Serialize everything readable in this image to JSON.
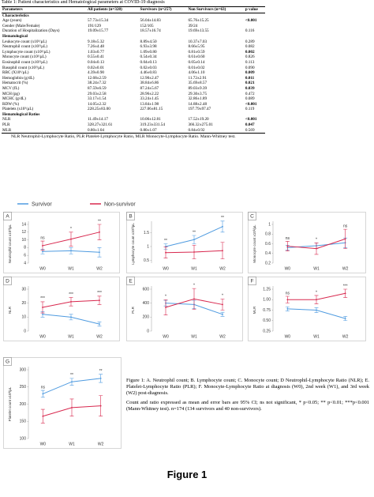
{
  "table": {
    "caption": "Table 1: Patient characteristics and Hematological parameters at COVID-19 diagnosis",
    "header": [
      "Parameters",
      "All patients (n=320)",
      "Survivors (n=257)",
      "Non Survivors (n=63)",
      "p value"
    ],
    "rows": [
      {
        "cells": [
          "Characteristics"
        ],
        "section": true
      },
      {
        "cells": [
          "Age (years)",
          "57.73±15.34",
          "56.04±14.83",
          "65.76±15.25",
          "<0.001"
        ],
        "bold": true
      },
      {
        "cells": [
          "Gender (Male/Female)",
          "191/129",
          "152/105",
          "39/24"
        ]
      },
      {
        "cells": [
          "Duration of Hospitalization (Days)",
          "19.09±15.77",
          "18.57±16.74",
          "19.69±13.55",
          "0.116"
        ]
      },
      {
        "cells": [
          "Hematological"
        ],
        "section": true
      },
      {
        "cells": [
          "Leukocyte count (x10³/µL)",
          "9.18±5.32",
          "8.89±4.50",
          "10.37±7.03",
          "0.289"
        ]
      },
      {
        "cells": [
          "Neutrophil count (x10³/µL)",
          "7.26±4.48",
          "6.93±3.98",
          "8.66±5.95",
          "0.082"
        ]
      },
      {
        "cells": [
          "Lymphocyte count (x10³/µL)",
          "1.03±0.77",
          "1.09±0.80",
          "0.81±0.59",
          "0.002"
        ],
        "bold": true
      },
      {
        "cells": [
          "Monocyte count (x10³/µL)",
          "0.55±0.41",
          "0.54±0.34",
          "0.61±0.60",
          "0.826"
        ]
      },
      {
        "cells": [
          "Eosinophil count (x10³/µL)",
          "0.04±0.13",
          "0.04±0.13",
          "0.05±0.14",
          "0.113"
        ]
      },
      {
        "cells": [
          "Basophil count (x10³/µL)",
          "0.02±0.01",
          "0.02±0.03",
          "0.01±0.02",
          "0.090"
        ]
      },
      {
        "cells": [
          "RBC (X10⁶/µL)",
          "4.39±0.90",
          "4.46±0.83",
          "4.06±1.10",
          "0.009"
        ],
        "bold": true
      },
      {
        "cells": [
          "Hemoglobin (g/dL)",
          "12.68±2.59",
          "12.90±2.47",
          "11.72±2.91",
          "0.011"
        ],
        "bold": true
      },
      {
        "cells": [
          "Hematocrit (%)",
          "38.24±7.32",
          "38.84±6.86",
          "35.69±8.57",
          "0.021"
        ],
        "bold": true
      },
      {
        "cells": [
          "MCV (fL)",
          "87.59±6.59",
          "87.24±5.67",
          "89.03±9.39",
          "0.039"
        ],
        "bold": true
      },
      {
        "cells": [
          "MCH (pg)",
          "29.03±2.58",
          "28.96±2.22",
          "29.30±3.75",
          "0.472"
        ]
      },
      {
        "cells": [
          "MCHC (g/dL)",
          "33.17±1.54",
          "33.24±1.45",
          "32.86±1.89",
          "0.089"
        ]
      },
      {
        "cells": [
          "RDW (%)",
          "14.05±2.32",
          "13.84±1.98",
          "14.88±2.48",
          "<0.001"
        ],
        "bold": true
      },
      {
        "cells": [
          "Platelets (x10³/µL)",
          "228.25±83.00",
          "227.06±81.15",
          "197.79±97.47",
          "0.119"
        ]
      },
      {
        "cells": [
          "Hematological Ratios"
        ],
        "section": true
      },
      {
        "cells": [
          "NLR",
          "11.49±14.17",
          "10.06±12.81",
          "17.52±19.20",
          "<0.001"
        ],
        "bold": true
      },
      {
        "cells": [
          "PLR",
          "328.27±321.61",
          "319.23±331.54",
          "366.32±275.01",
          "0.047"
        ],
        "bold": true
      },
      {
        "cells": [
          "MLR",
          "0.80±1.04",
          "0.80±1.07",
          "0.84±0.92",
          "0.569"
        ]
      }
    ],
    "footnote": "NLR Neutrophil-Lymphocyte Ratio, PLR Platelet-Lymphocyte Ratio, MLR Monocyte-Lymphocyte Ratio. Mann-Whitney test."
  },
  "legend": [
    {
      "name": "Survivor",
      "color": "#4f9be0"
    },
    {
      "name": "Non-survivor",
      "color": "#d8284e"
    }
  ],
  "chart_data": [
    {
      "type": "line",
      "label": "A",
      "ylabel": "Neutrophil count x10³/µL",
      "categories": [
        "W0",
        "W1",
        "W2"
      ],
      "ylim": [
        4,
        14
      ],
      "yticks": [
        4,
        6,
        8,
        10,
        12,
        14
      ],
      "significance": [
        "ns",
        "*",
        "**"
      ],
      "series": [
        {
          "values": [
            7,
            7.2,
            6.8
          ],
          "errors": [
            0.6,
            0.8,
            1.2
          ]
        },
        {
          "values": [
            8.5,
            10.2,
            12
          ],
          "errors": [
            1.2,
            1.8,
            2
          ]
        }
      ]
    },
    {
      "type": "line",
      "label": "B",
      "ylabel": "Lymphocyte count x10³/µL",
      "categories": [
        "W0",
        "W1",
        "W2"
      ],
      "ylim": [
        0.4,
        1.8
      ],
      "yticks": [
        0.5,
        1.0,
        1.5
      ],
      "significance": [
        "**",
        "**",
        "**"
      ],
      "series": [
        {
          "values": [
            1.0,
            1.25,
            1.72
          ],
          "errors": [
            0.1,
            0.15,
            0.2
          ]
        },
        {
          "values": [
            0.78,
            0.8,
            0.85
          ],
          "errors": [
            0.2,
            0.25,
            0.3
          ]
        }
      ]
    },
    {
      "type": "line",
      "label": "C",
      "ylabel": "Monocyte count x10³/µL",
      "categories": [
        "W0",
        "W1",
        "W2"
      ],
      "ylim": [
        0.2,
        1.0
      ],
      "yticks": [
        0.2,
        0.4,
        0.6,
        0.8,
        1.0
      ],
      "significance": [
        "ns",
        "*",
        "ns"
      ],
      "series": [
        {
          "values": [
            0.52,
            0.56,
            0.62
          ],
          "errors": [
            0.05,
            0.06,
            0.1
          ]
        },
        {
          "values": [
            0.55,
            0.5,
            0.7
          ],
          "errors": [
            0.1,
            0.12,
            0.2
          ]
        }
      ]
    },
    {
      "type": "line",
      "label": "D",
      "ylabel": "NLR",
      "categories": [
        "W0",
        "W1",
        "W2"
      ],
      "ylim": [
        0,
        30
      ],
      "yticks": [
        0,
        10,
        20,
        30
      ],
      "significance": [
        "***",
        "***",
        "***"
      ],
      "series": [
        {
          "values": [
            12,
            10,
            5
          ],
          "errors": [
            2,
            2,
            1.5
          ]
        },
        {
          "values": [
            17,
            21,
            22
          ],
          "errors": [
            4,
            3,
            3
          ]
        }
      ]
    },
    {
      "type": "line",
      "label": "E",
      "ylabel": "PLR",
      "categories": [
        "W0",
        "W1",
        "W2"
      ],
      "ylim": [
        0,
        600
      ],
      "yticks": [
        0,
        200,
        400,
        600
      ],
      "significance": [
        "*",
        "*",
        "*"
      ],
      "series": [
        {
          "values": [
            400,
            380,
            240
          ],
          "errors": [
            40,
            60,
            30
          ]
        },
        {
          "values": [
            340,
            460,
            380
          ],
          "errors": [
            110,
            150,
            80
          ]
        }
      ]
    },
    {
      "type": "line",
      "label": "F",
      "ylabel": "MLR",
      "categories": [
        "W0",
        "W1",
        "W2"
      ],
      "ylim": [
        0.25,
        1.25
      ],
      "yticks": [
        {
          "value": 0.25,
          "label": "0.25"
        },
        {
          "value": 0.5,
          "label": "0.50"
        },
        {
          "value": 0.75,
          "label": "0.75"
        },
        {
          "value": 1,
          "label": "1.00"
        },
        {
          "value": 1.25,
          "label": "1.25"
        }
      ],
      "significance": [
        "ns",
        "*",
        "***"
      ],
      "series": [
        {
          "values": [
            0.78,
            0.75,
            0.55
          ],
          "errors": [
            0.05,
            0.06,
            0.05
          ]
        },
        {
          "values": [
            1.0,
            1.0,
            1.15
          ],
          "errors": [
            0.08,
            0.1,
            0.1
          ]
        }
      ]
    },
    {
      "type": "line",
      "label": "G",
      "ylabel": "Platelet count x10³/µL",
      "categories": [
        "W0",
        "W1",
        "W2"
      ],
      "ylim": [
        100,
        300
      ],
      "yticks": [
        100,
        150,
        200,
        250,
        300
      ],
      "significance": [
        "ns",
        "**",
        "**"
      ],
      "series": [
        {
          "values": [
            230,
            265,
            275
          ],
          "errors": [
            10,
            10,
            12
          ]
        },
        {
          "values": [
            165,
            190,
            195
          ],
          "errors": [
            20,
            25,
            30
          ]
        }
      ]
    }
  ],
  "caption": [
    "Figure 1: A. Neutrophil count; B. Lymphocyte count; C. Monocyte count; D Neutrophil-Lymphocyte Ratio (NLR); E. Platelet-Lymphocyte Ratio (PLR); F. Monocyte-Lymphocyte Ratio at diagnosis (W0), 2nd week (W1), and 3rd week (W2) post-diagnosis.",
    "Count and ratio expressed as mean and error bars are 95% CI; ns not significant, * p<0.05; ** p<0.01; ***p<0.001 (Mann-Whitney test). n=174 (134 survivors and 40 non-survivors)."
  ],
  "figure_label": "Figure 1"
}
